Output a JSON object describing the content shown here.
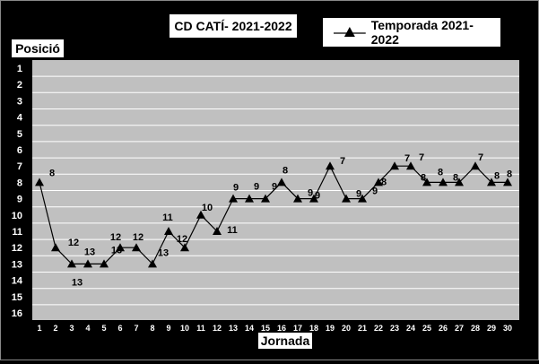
{
  "chart_data": {
    "type": "line",
    "title": "CD CATÍ- 2021-2022",
    "xlabel": "Jornada",
    "ylabel": "Posició",
    "x": [
      1,
      2,
      3,
      4,
      5,
      6,
      7,
      8,
      9,
      10,
      11,
      12,
      13,
      14,
      15,
      16,
      17,
      18,
      19,
      20,
      21,
      22,
      23,
      24,
      25,
      26,
      27,
      28,
      29,
      30
    ],
    "ylim": [
      1,
      16
    ],
    "y_inverted": true,
    "y_ticks": [
      1,
      2,
      3,
      4,
      5,
      6,
      7,
      8,
      9,
      10,
      11,
      12,
      13,
      14,
      15,
      16
    ],
    "grid": true,
    "legend_position": "top-right",
    "series": [
      {
        "name": "Temporada 2021-2022",
        "marker": "triangle",
        "color": "#000000",
        "values": [
          8,
          12,
          13,
          13,
          13,
          12,
          12,
          13,
          11,
          12,
          10,
          11,
          9,
          9,
          9,
          8,
          9,
          9,
          7,
          9,
          9,
          8,
          7,
          7,
          8,
          8,
          8,
          7,
          8,
          8
        ]
      }
    ],
    "data_labels": [
      8,
      12,
      13,
      13,
      13,
      12,
      12,
      13,
      11,
      12,
      10,
      11,
      9,
      9,
      9,
      8,
      9,
      9,
      7,
      9,
      9,
      8,
      7,
      7,
      8,
      8,
      8,
      7,
      8,
      8
    ],
    "colors": {
      "plot_background": "#c0c0c0",
      "figure_background": "#000000",
      "gridline": "#ffffff"
    }
  }
}
